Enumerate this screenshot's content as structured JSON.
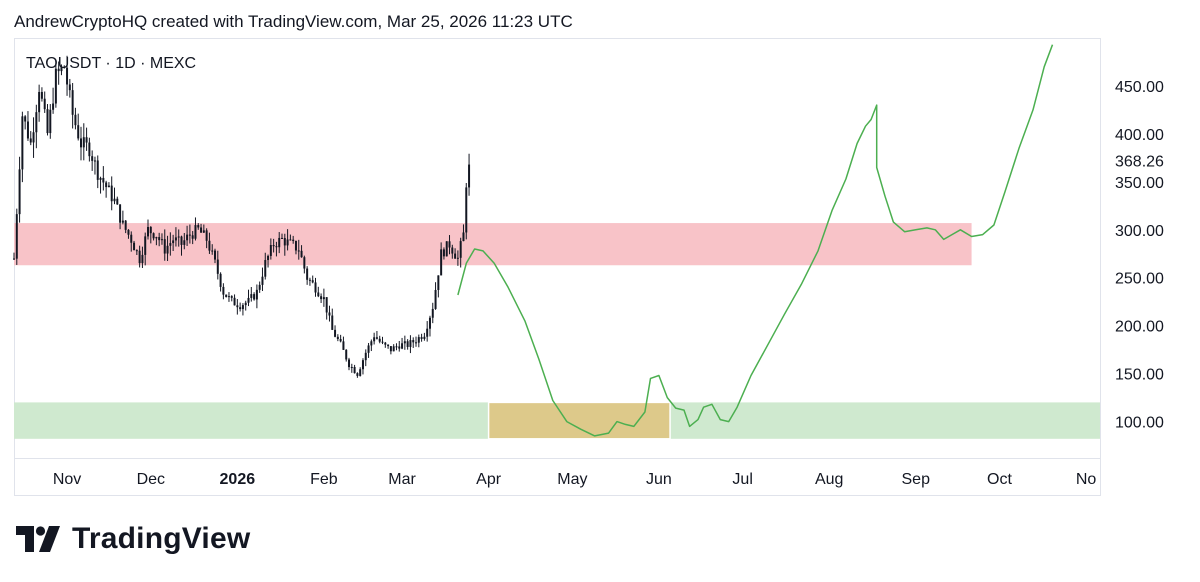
{
  "header": {
    "attribution": "AndrewCryptoHQ created with TradingView.com, Mar 25, 2026 11:23 UTC"
  },
  "symbol": {
    "label": "TAOUSDT · 1D · MEXC"
  },
  "brand": {
    "name": "TradingView"
  },
  "colors": {
    "resistance_zone": "#f8c3c8",
    "support_zone": "#cfe9cf",
    "target_zone": "#ddc98a",
    "projection_line": "#4caf50",
    "candles": "#131722"
  },
  "chart_data": {
    "type": "candlestick",
    "symbol": "TAOUSDT",
    "interval": "1D",
    "exchange": "MEXC",
    "last_price_label": "368.26",
    "y_ticks": [
      "100.00",
      "150.00",
      "200.00",
      "250.00",
      "300.00",
      "350.00",
      "400.00",
      "450.00"
    ],
    "ylim": [
      62,
      500
    ],
    "x_ticks": [
      {
        "label": "Nov",
        "date": "2025-11-01",
        "bold": false
      },
      {
        "label": "Dec",
        "date": "2025-12-01",
        "bold": false
      },
      {
        "label": "2026",
        "date": "2026-01-01",
        "bold": true
      },
      {
        "label": "Feb",
        "date": "2026-02-01",
        "bold": false
      },
      {
        "label": "Mar",
        "date": "2026-03-01",
        "bold": false
      },
      {
        "label": "Apr",
        "date": "2026-04-01",
        "bold": false
      },
      {
        "label": "May",
        "date": "2026-05-01",
        "bold": false
      },
      {
        "label": "Jun",
        "date": "2026-06-01",
        "bold": false
      },
      {
        "label": "Jul",
        "date": "2026-07-01",
        "bold": false
      },
      {
        "label": "Aug",
        "date": "2026-08-01",
        "bold": false
      },
      {
        "label": "Sep",
        "date": "2026-09-01",
        "bold": false
      },
      {
        "label": "Oct",
        "date": "2026-10-01",
        "bold": false
      },
      {
        "label": "No",
        "date": "2026-11-01",
        "bold": false
      }
    ],
    "xlim": [
      "2025-10-13",
      "2026-11-06"
    ],
    "zones": [
      {
        "name": "resistance",
        "y0": 263,
        "y1": 307,
        "x0": "2025-10-13",
        "x1": "2026-09-21"
      },
      {
        "name": "support",
        "y0": 82,
        "y1": 120,
        "x0": "2025-10-13",
        "x1": "2026-11-06"
      },
      {
        "name": "target",
        "y0": 82,
        "y1": 120,
        "x0": "2026-04-01",
        "x1": "2026-06-05"
      }
    ],
    "price_path": [
      [
        "2025-10-13",
        270
      ],
      [
        "2025-10-16",
        420
      ],
      [
        "2025-10-19",
        390
      ],
      [
        "2025-10-22",
        450
      ],
      [
        "2025-10-25",
        400
      ],
      [
        "2025-10-28",
        460
      ],
      [
        "2025-10-31",
        470
      ],
      [
        "2025-11-03",
        420
      ],
      [
        "2025-11-06",
        390
      ],
      [
        "2025-11-09",
        385
      ],
      [
        "2025-11-12",
        360
      ],
      [
        "2025-11-15",
        345
      ],
      [
        "2025-11-18",
        330
      ],
      [
        "2025-11-21",
        305
      ],
      [
        "2025-11-24",
        290
      ],
      [
        "2025-11-27",
        270
      ],
      [
        "2025-11-30",
        300
      ],
      [
        "2025-12-03",
        295
      ],
      [
        "2025-12-06",
        280
      ],
      [
        "2025-12-09",
        290
      ],
      [
        "2025-12-12",
        285
      ],
      [
        "2025-12-15",
        295
      ],
      [
        "2025-12-18",
        300
      ],
      [
        "2025-12-21",
        290
      ],
      [
        "2025-12-24",
        265
      ],
      [
        "2025-12-27",
        235
      ],
      [
        "2025-12-30",
        225
      ],
      [
        "2026-01-02",
        222
      ],
      [
        "2026-01-05",
        225
      ],
      [
        "2026-01-08",
        235
      ],
      [
        "2026-01-11",
        265
      ],
      [
        "2026-01-14",
        285
      ],
      [
        "2026-01-17",
        290
      ],
      [
        "2026-01-20",
        285
      ],
      [
        "2026-01-23",
        280
      ],
      [
        "2026-01-26",
        250
      ],
      [
        "2026-01-29",
        240
      ],
      [
        "2026-02-01",
        228
      ],
      [
        "2026-02-04",
        195
      ],
      [
        "2026-02-07",
        180
      ],
      [
        "2026-02-10",
        160
      ],
      [
        "2026-02-13",
        150
      ],
      [
        "2026-02-16",
        172
      ],
      [
        "2026-02-19",
        190
      ],
      [
        "2026-02-22",
        180
      ],
      [
        "2026-02-25",
        175
      ],
      [
        "2026-02-28",
        180
      ],
      [
        "2026-03-03",
        180
      ],
      [
        "2026-03-06",
        185
      ],
      [
        "2026-03-09",
        192
      ],
      [
        "2026-03-12",
        220
      ],
      [
        "2026-03-15",
        275
      ],
      [
        "2026-03-18",
        285
      ],
      [
        "2026-03-21",
        270
      ],
      [
        "2026-03-23",
        295
      ],
      [
        "2026-03-24",
        350
      ],
      [
        "2026-03-25",
        368
      ]
    ],
    "projection": [
      [
        "2026-03-21",
        232
      ],
      [
        "2026-03-24",
        265
      ],
      [
        "2026-03-27",
        280
      ],
      [
        "2026-03-30",
        278
      ],
      [
        "2026-04-03",
        265
      ],
      [
        "2026-04-08",
        240
      ],
      [
        "2026-04-14",
        205
      ],
      [
        "2026-04-19",
        165
      ],
      [
        "2026-04-24",
        122
      ],
      [
        "2026-04-29",
        100
      ],
      [
        "2026-05-04",
        92
      ],
      [
        "2026-05-09",
        85
      ],
      [
        "2026-05-14",
        88
      ],
      [
        "2026-05-17",
        100
      ],
      [
        "2026-05-20",
        97
      ],
      [
        "2026-05-23",
        95
      ],
      [
        "2026-05-27",
        110
      ],
      [
        "2026-05-29",
        145
      ],
      [
        "2026-06-01",
        148
      ],
      [
        "2026-06-04",
        125
      ],
      [
        "2026-06-07",
        114
      ],
      [
        "2026-06-10",
        112
      ],
      [
        "2026-06-12",
        95
      ],
      [
        "2026-06-15",
        102
      ],
      [
        "2026-06-17",
        115
      ],
      [
        "2026-06-20",
        118
      ],
      [
        "2026-06-23",
        102
      ],
      [
        "2026-06-26",
        100
      ],
      [
        "2026-06-29",
        115
      ],
      [
        "2026-07-04",
        148
      ],
      [
        "2026-07-10",
        180
      ],
      [
        "2026-07-16",
        212
      ],
      [
        "2026-07-22",
        243
      ],
      [
        "2026-07-28",
        278
      ],
      [
        "2026-08-02",
        320
      ],
      [
        "2026-08-07",
        353
      ],
      [
        "2026-08-11",
        390
      ],
      [
        "2026-08-14",
        408
      ],
      [
        "2026-08-16",
        415
      ],
      [
        "2026-08-18",
        430
      ],
      [
        "2026-08-18",
        365
      ],
      [
        "2026-08-21",
        335
      ],
      [
        "2026-08-24",
        308
      ],
      [
        "2026-08-28",
        298
      ],
      [
        "2026-09-01",
        300
      ],
      [
        "2026-09-05",
        302
      ],
      [
        "2026-09-08",
        300
      ],
      [
        "2026-09-11",
        290
      ],
      [
        "2026-09-14",
        295
      ],
      [
        "2026-09-17",
        300
      ],
      [
        "2026-09-21",
        293
      ],
      [
        "2026-09-25",
        295
      ],
      [
        "2026-09-29",
        305
      ],
      [
        "2026-10-03",
        340
      ],
      [
        "2026-10-08",
        385
      ],
      [
        "2026-10-13",
        425
      ],
      [
        "2026-10-17",
        470
      ],
      [
        "2026-10-20",
        493
      ]
    ]
  }
}
